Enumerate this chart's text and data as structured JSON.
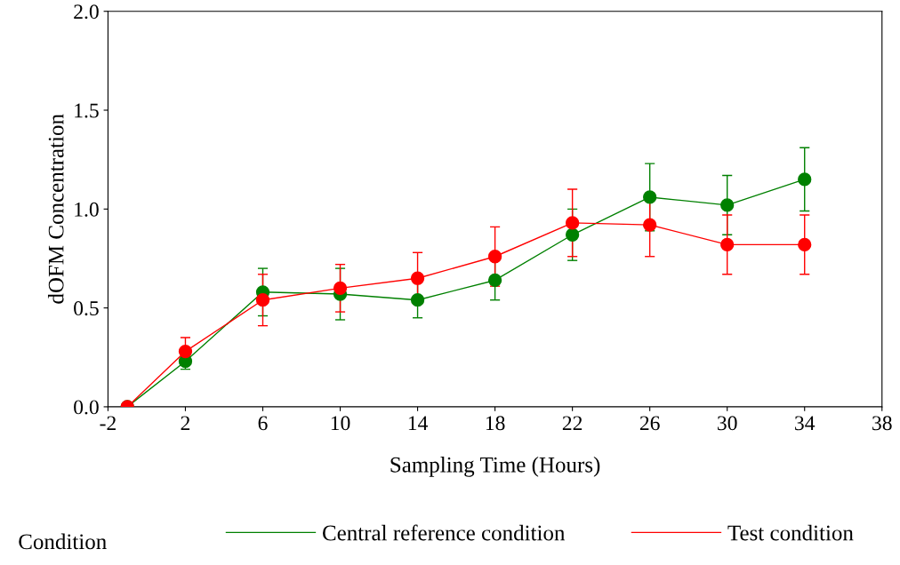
{
  "chart_data": {
    "type": "line",
    "xlabel": "Sampling Time (Hours)",
    "ylabel": "dOFM Concentration",
    "legend_title": "Condition",
    "x": [
      -1,
      2,
      6,
      10,
      14,
      18,
      22,
      26,
      30,
      34
    ],
    "series": [
      {
        "name": "Central reference condition",
        "color": "#008000",
        "values": [
          0.0,
          0.23,
          0.58,
          0.57,
          0.54,
          0.64,
          0.87,
          1.06,
          1.02,
          1.15
        ],
        "errors": [
          null,
          0.04,
          0.12,
          0.13,
          0.09,
          0.1,
          0.13,
          0.17,
          0.15,
          0.16
        ]
      },
      {
        "name": "Test condition",
        "color": "#ff0000",
        "values": [
          0.0,
          0.28,
          0.54,
          0.6,
          0.65,
          0.76,
          0.93,
          0.92,
          0.82,
          0.82
        ],
        "errors": [
          null,
          0.07,
          0.13,
          0.12,
          0.13,
          0.15,
          0.17,
          0.16,
          0.15,
          0.15
        ]
      }
    ],
    "xlim": [
      -2,
      38
    ],
    "xticks": [
      -2,
      2,
      6,
      10,
      14,
      18,
      22,
      26,
      30,
      34,
      38
    ],
    "ylim": [
      0.0,
      2.0
    ],
    "yticks": [
      {
        "value": 0,
        "label": "0.0"
      },
      {
        "value": 0.5,
        "label": "0.5"
      },
      {
        "value": 1,
        "label": "1.0"
      },
      {
        "value": 1.5,
        "label": "1.5"
      },
      {
        "value": 2,
        "label": "2.0"
      }
    ],
    "marker": "circle",
    "line_style": "solid",
    "grid": false,
    "legend": "bottom"
  }
}
